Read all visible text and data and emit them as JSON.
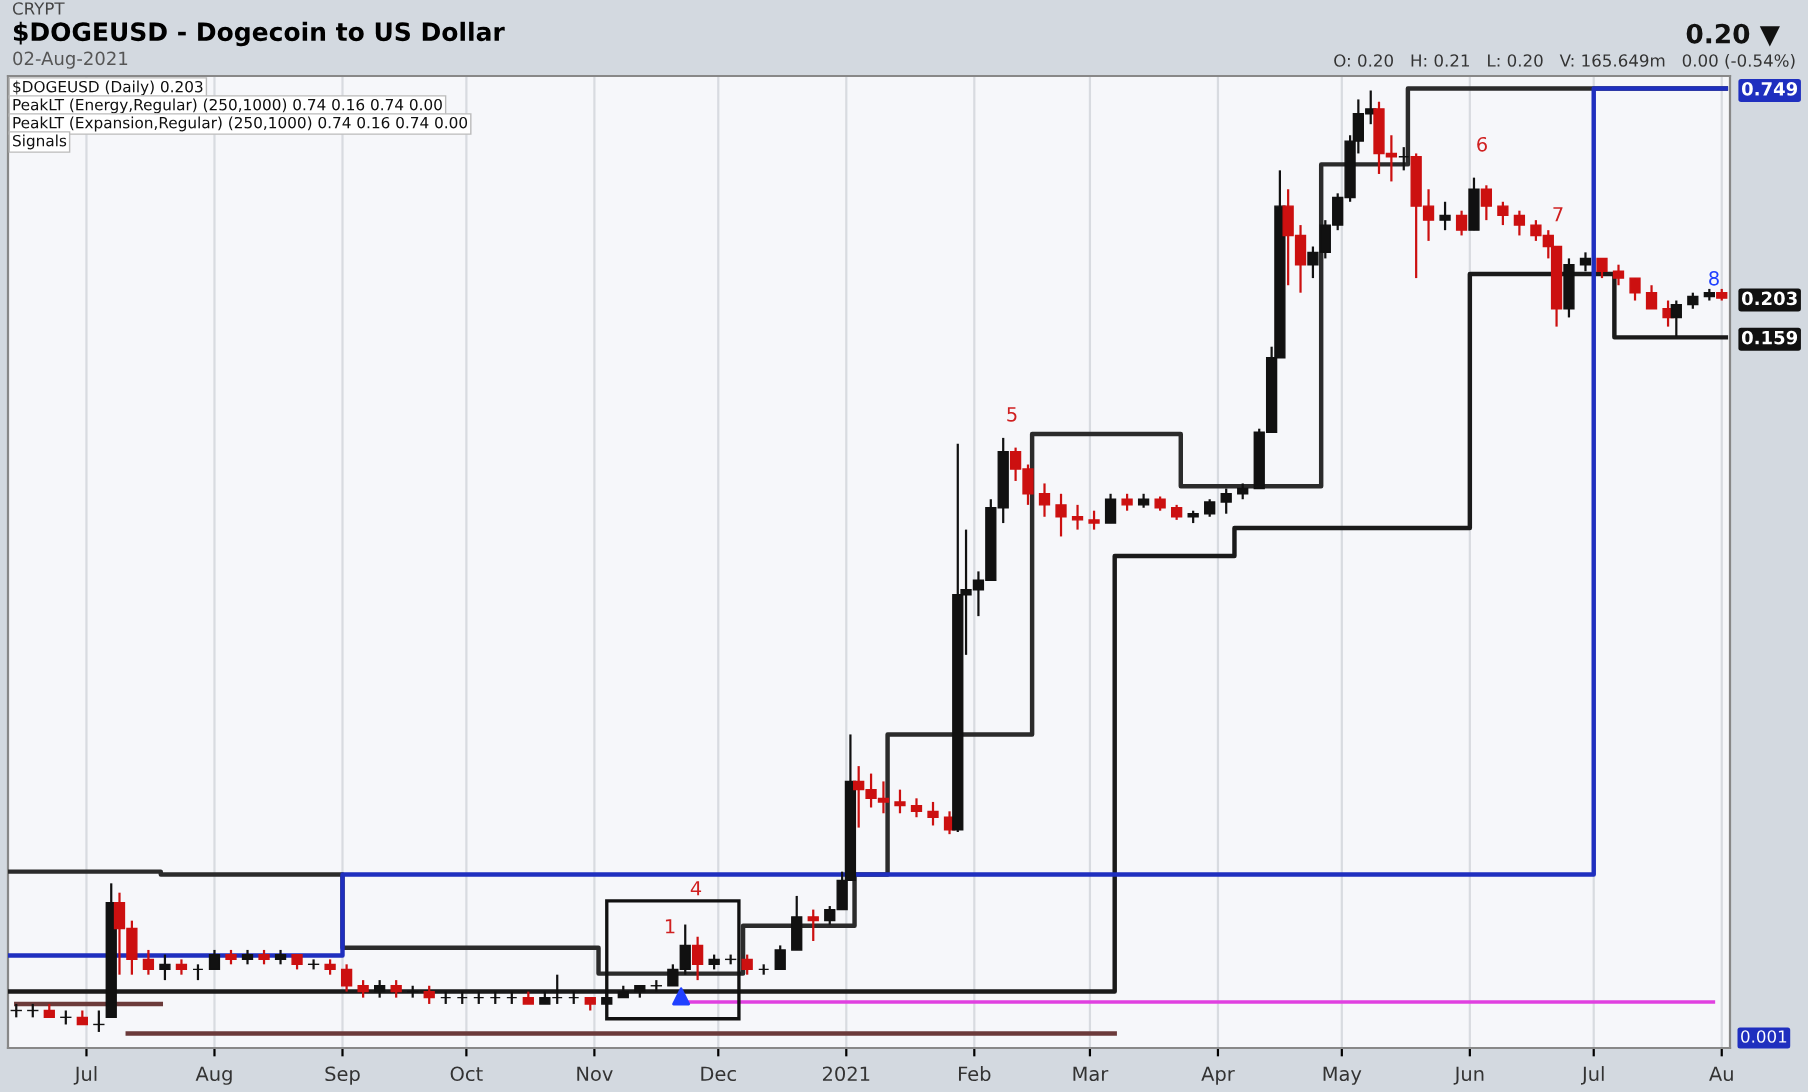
{
  "chart_data": {
    "type": "candlestick",
    "title": "$DOGEUSD - Dogecoin to US Dollar",
    "subtitle": "02-Aug-2021",
    "annotations": [
      "CRYPT",
      "0.20 ▼",
      "O: 0.20   H: 0.21   L: 0.20   V: 165.649m   0.00 (-0.54%)",
      "$DOGEUSD (Daily) 0.203",
      "PeakLT (Energy,Regular) (250,1000) 0.74 0.16 0.74 0.00",
      "PeakLT (Expansion,Regular) (250,1000) 0.74 0.16 0.74 0.00",
      "Signals",
      "0.001",
      "1",
      "4",
      "5",
      "6",
      "7",
      "8"
    ],
    "x": [
      "2020-06-14",
      "2020-06-18",
      "2020-06-22",
      "2020-06-26",
      "2020-06-30",
      "2020-07-04",
      "2020-07-07",
      "2020-07-09",
      "2020-07-12",
      "2020-07-16",
      "2020-07-20",
      "2020-07-24",
      "2020-07-28",
      "2020-08-01",
      "2020-08-05",
      "2020-08-09",
      "2020-08-13",
      "2020-08-17",
      "2020-08-21",
      "2020-08-25",
      "2020-08-29",
      "2020-09-02",
      "2020-09-06",
      "2020-09-10",
      "2020-09-14",
      "2020-09-18",
      "2020-09-22",
      "2020-09-26",
      "2020-09-30",
      "2020-10-04",
      "2020-10-08",
      "2020-10-12",
      "2020-10-16",
      "2020-10-20",
      "2020-10-23",
      "2020-10-27",
      "2020-10-31",
      "2020-11-04",
      "2020-11-08",
      "2020-11-12",
      "2020-11-16",
      "2020-11-20",
      "2020-11-23",
      "2020-11-26",
      "2020-11-30",
      "2020-12-04",
      "2020-12-08",
      "2020-12-12",
      "2020-12-16",
      "2020-12-20",
      "2020-12-24",
      "2020-12-28",
      "2020-12-31",
      "2021-01-02",
      "2021-01-04",
      "2021-01-07",
      "2021-01-10",
      "2021-01-14",
      "2021-01-18",
      "2021-01-22",
      "2021-01-26",
      "2021-01-28",
      "2021-01-30",
      "2021-02-02",
      "2021-02-05",
      "2021-02-08",
      "2021-02-11",
      "2021-02-14",
      "2021-02-18",
      "2021-02-22",
      "2021-02-26",
      "2021-03-02",
      "2021-03-06",
      "2021-03-10",
      "2021-03-14",
      "2021-03-18",
      "2021-03-22",
      "2021-03-26",
      "2021-03-30",
      "2021-04-03",
      "2021-04-07",
      "2021-04-11",
      "2021-04-14",
      "2021-04-16",
      "2021-04-18",
      "2021-04-21",
      "2021-04-24",
      "2021-04-27",
      "2021-04-30",
      "2021-05-03",
      "2021-05-05",
      "2021-05-08",
      "2021-05-10",
      "2021-05-13",
      "2021-05-16",
      "2021-05-19",
      "2021-05-22",
      "2021-05-26",
      "2021-05-30",
      "2021-06-02",
      "2021-06-05",
      "2021-06-09",
      "2021-06-13",
      "2021-06-17",
      "2021-06-20",
      "2021-06-22",
      "2021-06-25",
      "2021-06-29",
      "2021-07-03",
      "2021-07-07",
      "2021-07-11",
      "2021-07-15",
      "2021-07-19",
      "2021-07-21",
      "2021-07-25",
      "2021-07-29",
      "2021-08-01"
    ],
    "ohlc": [
      [
        0.0024,
        0.0025,
        0.0023,
        0.0024
      ],
      [
        0.0024,
        0.0025,
        0.0023,
        0.0024
      ],
      [
        0.0024,
        0.0025,
        0.0023,
        0.0023
      ],
      [
        0.0023,
        0.0024,
        0.0022,
        0.0023
      ],
      [
        0.0023,
        0.0024,
        0.0022,
        0.0022
      ],
      [
        0.0022,
        0.0024,
        0.0021,
        0.0022
      ],
      [
        0.0023,
        0.0053,
        0.0023,
        0.0047
      ],
      [
        0.0047,
        0.005,
        0.003,
        0.004
      ],
      [
        0.004,
        0.0042,
        0.003,
        0.0033
      ],
      [
        0.0033,
        0.0035,
        0.003,
        0.0031
      ],
      [
        0.0031,
        0.0034,
        0.0029,
        0.0032
      ],
      [
        0.0032,
        0.0033,
        0.003,
        0.0031
      ],
      [
        0.0031,
        0.0032,
        0.0029,
        0.0031
      ],
      [
        0.0031,
        0.0035,
        0.0031,
        0.0034
      ],
      [
        0.0034,
        0.0035,
        0.0032,
        0.0033
      ],
      [
        0.0033,
        0.0035,
        0.0032,
        0.0034
      ],
      [
        0.0034,
        0.0035,
        0.0032,
        0.0033
      ],
      [
        0.0033,
        0.0035,
        0.0032,
        0.0034
      ],
      [
        0.0034,
        0.0034,
        0.0031,
        0.0032
      ],
      [
        0.0032,
        0.0033,
        0.0031,
        0.0032
      ],
      [
        0.0032,
        0.0033,
        0.003,
        0.0031
      ],
      [
        0.0031,
        0.0032,
        0.0027,
        0.0028
      ],
      [
        0.0028,
        0.0029,
        0.0026,
        0.0027
      ],
      [
        0.0027,
        0.0029,
        0.0026,
        0.0028
      ],
      [
        0.0028,
        0.0029,
        0.0026,
        0.0027
      ],
      [
        0.0027,
        0.0028,
        0.0026,
        0.0027
      ],
      [
        0.0027,
        0.0028,
        0.0025,
        0.0026
      ],
      [
        0.0026,
        0.0027,
        0.0025,
        0.0026
      ],
      [
        0.0026,
        0.0027,
        0.0025,
        0.0026
      ],
      [
        0.0026,
        0.0027,
        0.0025,
        0.0026
      ],
      [
        0.0026,
        0.0027,
        0.0025,
        0.0026
      ],
      [
        0.0026,
        0.0027,
        0.0025,
        0.0026
      ],
      [
        0.0026,
        0.0027,
        0.0025,
        0.0025
      ],
      [
        0.0025,
        0.0027,
        0.0025,
        0.0026
      ],
      [
        0.0026,
        0.003,
        0.0025,
        0.0026
      ],
      [
        0.0026,
        0.0027,
        0.0025,
        0.0026
      ],
      [
        0.0026,
        0.0026,
        0.0024,
        0.0025
      ],
      [
        0.0025,
        0.0027,
        0.0025,
        0.0026
      ],
      [
        0.0026,
        0.0028,
        0.0026,
        0.0027
      ],
      [
        0.0027,
        0.0028,
        0.0026,
        0.0028
      ],
      [
        0.0028,
        0.0029,
        0.0027,
        0.0028
      ],
      [
        0.0028,
        0.0032,
        0.0028,
        0.0031
      ],
      [
        0.0031,
        0.0041,
        0.003,
        0.0036
      ],
      [
        0.0036,
        0.0038,
        0.0029,
        0.0032
      ],
      [
        0.0032,
        0.0034,
        0.0031,
        0.0033
      ],
      [
        0.0033,
        0.0034,
        0.0032,
        0.0033
      ],
      [
        0.0033,
        0.0034,
        0.003,
        0.0031
      ],
      [
        0.0031,
        0.0032,
        0.003,
        0.0031
      ],
      [
        0.0031,
        0.0036,
        0.0031,
        0.0035
      ],
      [
        0.0035,
        0.0049,
        0.0035,
        0.0043
      ],
      [
        0.0043,
        0.0045,
        0.0037,
        0.0042
      ],
      [
        0.0042,
        0.0046,
        0.0041,
        0.0045
      ],
      [
        0.0045,
        0.0057,
        0.0045,
        0.0054
      ],
      [
        0.0054,
        0.0134,
        0.0054,
        0.01
      ],
      [
        0.01,
        0.011,
        0.0075,
        0.0095
      ],
      [
        0.0095,
        0.0105,
        0.0085,
        0.009
      ],
      [
        0.009,
        0.01,
        0.0082,
        0.0088
      ],
      [
        0.0088,
        0.0095,
        0.0082,
        0.0086
      ],
      [
        0.0086,
        0.009,
        0.008,
        0.0083
      ],
      [
        0.0083,
        0.0088,
        0.0076,
        0.008
      ],
      [
        0.008,
        0.0083,
        0.0072,
        0.0074
      ],
      [
        0.0074,
        0.082,
        0.0073,
        0.032
      ],
      [
        0.032,
        0.048,
        0.022,
        0.033
      ],
      [
        0.033,
        0.037,
        0.028,
        0.035
      ],
      [
        0.035,
        0.058,
        0.035,
        0.055
      ],
      [
        0.055,
        0.085,
        0.05,
        0.078
      ],
      [
        0.078,
        0.08,
        0.065,
        0.07
      ],
      [
        0.07,
        0.072,
        0.056,
        0.06
      ],
      [
        0.06,
        0.064,
        0.052,
        0.056
      ],
      [
        0.056,
        0.06,
        0.046,
        0.052
      ],
      [
        0.052,
        0.056,
        0.048,
        0.051
      ],
      [
        0.051,
        0.054,
        0.048,
        0.05
      ],
      [
        0.05,
        0.06,
        0.05,
        0.058
      ],
      [
        0.058,
        0.06,
        0.054,
        0.056
      ],
      [
        0.056,
        0.06,
        0.055,
        0.058
      ],
      [
        0.058,
        0.059,
        0.054,
        0.055
      ],
      [
        0.055,
        0.056,
        0.051,
        0.052
      ],
      [
        0.052,
        0.054,
        0.05,
        0.053
      ],
      [
        0.053,
        0.058,
        0.052,
        0.057
      ],
      [
        0.057,
        0.062,
        0.053,
        0.06
      ],
      [
        0.06,
        0.064,
        0.058,
        0.062
      ],
      [
        0.062,
        0.09,
        0.062,
        0.088
      ],
      [
        0.088,
        0.15,
        0.088,
        0.14
      ],
      [
        0.14,
        0.45,
        0.14,
        0.36
      ],
      [
        0.36,
        0.4,
        0.22,
        0.3
      ],
      [
        0.3,
        0.32,
        0.21,
        0.25
      ],
      [
        0.25,
        0.28,
        0.23,
        0.27
      ],
      [
        0.27,
        0.33,
        0.26,
        0.32
      ],
      [
        0.32,
        0.39,
        0.31,
        0.38
      ],
      [
        0.38,
        0.56,
        0.37,
        0.54
      ],
      [
        0.54,
        0.7,
        0.5,
        0.64
      ],
      [
        0.64,
        0.74,
        0.6,
        0.66
      ],
      [
        0.66,
        0.69,
        0.44,
        0.5
      ],
      [
        0.5,
        0.56,
        0.42,
        0.49
      ],
      [
        0.49,
        0.52,
        0.45,
        0.49
      ],
      [
        0.49,
        0.5,
        0.23,
        0.36
      ],
      [
        0.36,
        0.4,
        0.29,
        0.33
      ],
      [
        0.33,
        0.37,
        0.31,
        0.34
      ],
      [
        0.34,
        0.35,
        0.3,
        0.31
      ],
      [
        0.31,
        0.43,
        0.31,
        0.4
      ],
      [
        0.4,
        0.41,
        0.33,
        0.36
      ],
      [
        0.36,
        0.37,
        0.32,
        0.34
      ],
      [
        0.34,
        0.35,
        0.3,
        0.32
      ],
      [
        0.32,
        0.33,
        0.29,
        0.3
      ],
      [
        0.3,
        0.31,
        0.26,
        0.28
      ],
      [
        0.28,
        0.28,
        0.17,
        0.19
      ],
      [
        0.19,
        0.26,
        0.18,
        0.25
      ],
      [
        0.25,
        0.27,
        0.24,
        0.26
      ],
      [
        0.26,
        0.26,
        0.23,
        0.24
      ],
      [
        0.24,
        0.25,
        0.22,
        0.23
      ],
      [
        0.23,
        0.23,
        0.2,
        0.21
      ],
      [
        0.21,
        0.22,
        0.19,
        0.19
      ],
      [
        0.19,
        0.2,
        0.17,
        0.18
      ],
      [
        0.18,
        0.2,
        0.16,
        0.195
      ],
      [
        0.195,
        0.21,
        0.19,
        0.205
      ],
      [
        0.205,
        0.215,
        0.2,
        0.21
      ],
      [
        0.21,
        0.215,
        0.2,
        0.203
      ]
    ],
    "series": [
      {
        "type": "step",
        "color": "#2b2b2b",
        "x": [
          "2020-06-12",
          "2020-07-19",
          "2020-09-01",
          "2020-11-02",
          "2020-12-07",
          "2021-01-03",
          "2021-01-11",
          "2021-02-15",
          "2021-03-23",
          "2021-04-26",
          "2021-05-17",
          "2021-08-02"
        ],
        "values": [
          0.0057,
          0.0056,
          0.00355,
          0.00302,
          0.00407,
          0.0056,
          0.0134,
          0.0871,
          0.0629,
          0.467,
          0.749,
          0.749
        ]
      },
      {
        "type": "step",
        "color": "#1a1a1a",
        "x": [
          "2020-06-12",
          "2021-03-07",
          "2021-04-05",
          "2021-06-01",
          "2021-07-06",
          "2021-08-02"
        ],
        "values": [
          0.0027,
          0.0407,
          0.0485,
          0.236,
          0.159,
          0.159
        ]
      },
      {
        "type": "step",
        "color": "#1f2fbf",
        "x": [
          "2020-06-12",
          "2020-09-01",
          "2021-07-01",
          "2021-08-02"
        ],
        "values": [
          0.00338,
          0.0056,
          0.749,
          0.749
        ]
      },
      {
        "type": "step",
        "color": "#6b3a3a",
        "x": [
          "2020-06-14",
          "2020-07-19"
        ],
        "values": [
          0.0025,
          0.0025
        ]
      },
      {
        "type": "step",
        "color": "#6b3a3a",
        "x": [
          "2020-07-11",
          "2021-03-07"
        ],
        "values": [
          0.00208,
          0.00208
        ]
      },
      {
        "type": "line",
        "color": "#e040e0",
        "x": [
          "2020-11-21",
          "2021-07-30"
        ],
        "values": [
          0.00253,
          0.00253
        ]
      },
      {
        "type": "scatter",
        "color": "#2040ff",
        "marker": "triangle",
        "x": [
          "2020-11-22"
        ],
        "values": [
          0.00262
        ]
      }
    ],
    "log": true,
    "ylim": [
      0.0019,
      0.81
    ],
    "yticks": [
      0.749,
      0.203,
      0.159
    ],
    "xlim": [
      "2020-06-12",
      "2021-08-03"
    ],
    "xticks": [
      {
        "value": "2020-07-01",
        "label": "Jul"
      },
      {
        "value": "2020-08-01",
        "label": "Aug"
      },
      {
        "value": "2020-09-01",
        "label": "Sep"
      },
      {
        "value": "2020-10-01",
        "label": "Oct"
      },
      {
        "value": "2020-11-01",
        "label": "Nov"
      },
      {
        "value": "2020-12-01",
        "label": "Dec"
      },
      {
        "value": "2021-01-01",
        "label": "2021"
      },
      {
        "value": "2021-02-01",
        "label": "Feb"
      },
      {
        "value": "2021-03-01",
        "label": "Mar"
      },
      {
        "value": "2021-04-01",
        "label": "Apr"
      },
      {
        "value": "2021-05-01",
        "label": "May"
      },
      {
        "value": "2021-06-01",
        "label": "Jun"
      },
      {
        "value": "2021-07-01",
        "label": "Jul"
      },
      {
        "value": "2021-08-01",
        "label": "Au"
      }
    ],
    "grid": "x"
  }
}
